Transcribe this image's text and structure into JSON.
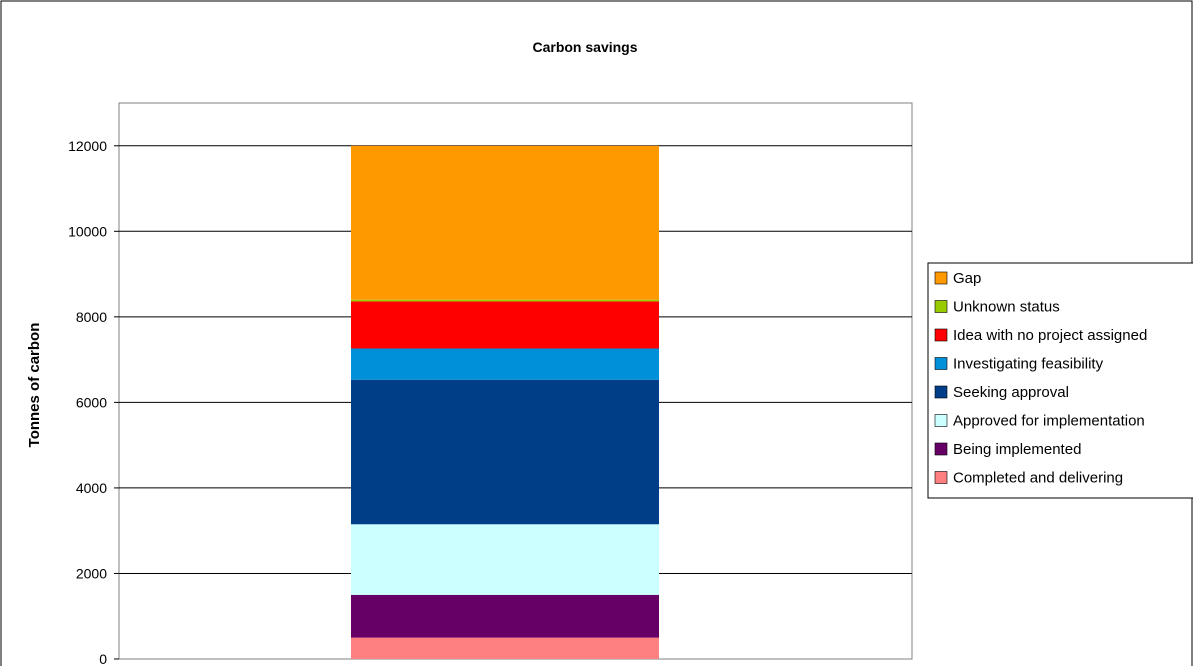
{
  "chart_data": {
    "type": "bar",
    "stacked": true,
    "title": "Carbon savings",
    "xlabel": "",
    "ylabel": "Tonnes of carbon",
    "ylim": [
      0,
      13000
    ],
    "yticks": [
      0,
      2000,
      4000,
      6000,
      8000,
      10000,
      12000
    ],
    "grid": true,
    "legend_position": "right",
    "categories": [
      ""
    ],
    "series": [
      {
        "name": "Completed and delivering",
        "values": [
          500
        ],
        "color": "#FF8080"
      },
      {
        "name": "Being implemented",
        "values": [
          1000
        ],
        "color": "#660066"
      },
      {
        "name": "Approved for implementation",
        "values": [
          1650
        ],
        "color": "#CCFFFF"
      },
      {
        "name": "Seeking approval",
        "values": [
          3380
        ],
        "color": "#003F87"
      },
      {
        "name": "Investigating feasibility",
        "values": [
          730
        ],
        "color": "#0090D9"
      },
      {
        "name": "Idea with no project assigned",
        "values": [
          1100
        ],
        "color": "#FF0000"
      },
      {
        "name": "Unknown status",
        "values": [
          40
        ],
        "color": "#99CC00"
      },
      {
        "name": "Gap",
        "values": [
          3600
        ],
        "color": "#FF9900"
      }
    ]
  }
}
